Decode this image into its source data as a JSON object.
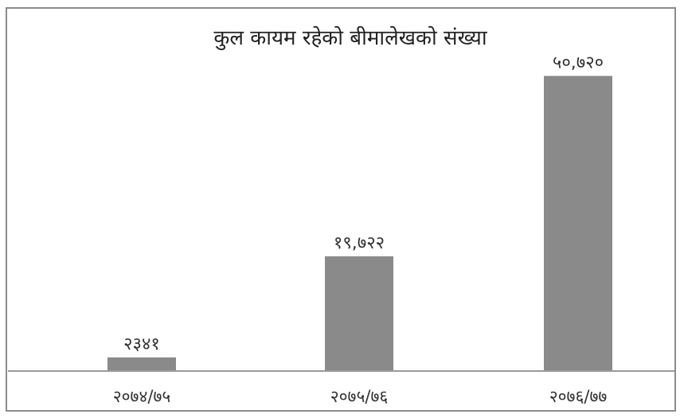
{
  "chart_data": {
    "type": "bar",
    "title": "कुल कायम रहेको बीमालेखको संख्या",
    "xlabel": "",
    "ylabel": "",
    "categories": [
      "२०७४/७५",
      "२०७५/७६",
      "२०७६/७७"
    ],
    "values": [
      2341,
      19722,
      50720
    ],
    "data_labels": [
      "२३४१",
      "१९,७२२",
      "५०,७२०"
    ],
    "ylim": [
      0,
      52000
    ],
    "grid": false,
    "legend": "none",
    "colors": {
      "bar": "#8a8a8a",
      "axis": "#9a9a9a",
      "frame": "#8c8c8c"
    }
  }
}
